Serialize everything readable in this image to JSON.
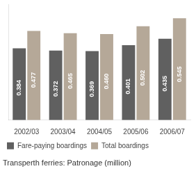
{
  "chart_data": {
    "type": "bar",
    "title": "Transperth ferries: Patronage (million)",
    "categories": [
      "2002/03",
      "2003/04",
      "2004/05",
      "2005/06",
      "2006/07"
    ],
    "series": [
      {
        "name": "Fare-paying boardings",
        "color": "#606060",
        "values": [
          0.384,
          0.372,
          0.369,
          0.401,
          0.435
        ]
      },
      {
        "name": "Total boardings",
        "color": "#b5a898",
        "values": [
          0.477,
          0.465,
          0.46,
          0.502,
          0.545
        ],
        "value_labels": [
          "0.477",
          "0.465",
          "0.460",
          "0.502",
          "0.545"
        ]
      }
    ],
    "ylim": [
      0,
      0.62
    ],
    "grid": false,
    "legend": "bottom",
    "data_labels": true,
    "tick_labels": "x"
  }
}
